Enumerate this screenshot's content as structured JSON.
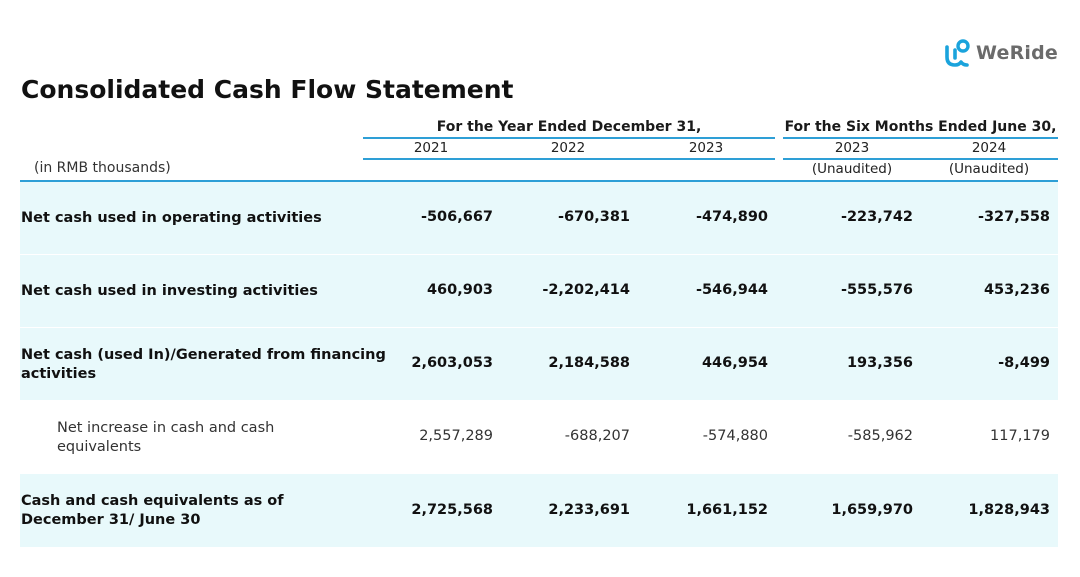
{
  "brand": {
    "logo_text": "WeRide",
    "logo_icon": "weride-logo-icon",
    "accent_color": "#1aa3dc"
  },
  "title": "Consolidated Cash Flow Statement",
  "header": {
    "group_year": "For the Year Ended December 31,",
    "group_six_months": "For the Six Months Ended June 30,",
    "years": [
      "2021",
      "2022",
      "2023",
      "2023",
      "2024"
    ],
    "audit_status": [
      "",
      "",
      "",
      "(Unaudited)",
      "(Unaudited)"
    ],
    "units": "(in RMB thousands)"
  },
  "rows": [
    {
      "label_lines": [
        "Net cash used in operating activities"
      ],
      "values": [
        "-506,667",
        "-670,381",
        "-474,890",
        "-223,742",
        "-327,558"
      ],
      "bold": true,
      "shaded": true
    },
    {
      "label_lines": [
        "Net cash used in investing activities"
      ],
      "values": [
        "460,903",
        "-2,202,414",
        "-546,944",
        "-555,576",
        "453,236"
      ],
      "bold": true,
      "shaded": true
    },
    {
      "label_lines": [
        "Net cash (used In)/Generated from financing",
        "activities"
      ],
      "values": [
        "2,603,053",
        "2,184,588",
        "446,954",
        "193,356",
        "-8,499"
      ],
      "bold": true,
      "shaded": true
    },
    {
      "label_lines": [
        "Net increase in cash and cash",
        "equivalents"
      ],
      "values": [
        "2,557,289",
        "-688,207",
        "-574,880",
        "-585,962",
        "117,179"
      ],
      "bold": false,
      "shaded": false
    },
    {
      "label_lines": [
        "Cash and cash equivalents as of",
        "December 31/ June 30"
      ],
      "values": [
        "2,725,568",
        "2,233,691",
        "1,661,152",
        "1,659,970",
        "1,828,943"
      ],
      "bold": true,
      "shaded": true
    }
  ],
  "colors": {
    "rule": "#2e9fd6",
    "row_shade": "#e8f9fb"
  }
}
